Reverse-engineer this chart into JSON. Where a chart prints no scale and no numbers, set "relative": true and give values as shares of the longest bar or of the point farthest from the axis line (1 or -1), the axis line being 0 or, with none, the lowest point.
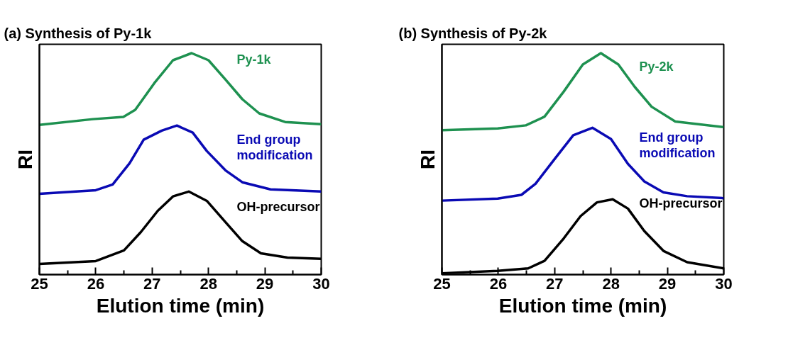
{
  "chart_data": [
    {
      "type": "line",
      "title": "(a) Synthesis of Py-1k",
      "xlabel": "Elution time (min)",
      "ylabel": "RI",
      "relative": true,
      "xlim": [
        25,
        30
      ],
      "xticks": [
        25,
        {
          "value": 25.5,
          "label": null
        },
        26,
        {
          "value": 26.5,
          "label": null
        },
        27,
        {
          "value": 27.5,
          "label": null
        },
        28,
        {
          "value": 28.5,
          "label": null
        },
        29,
        {
          "value": 29.5,
          "label": null
        },
        30
      ],
      "series": [
        {
          "name": "Py-1k",
          "color": "#1e9150",
          "x": [
            25,
            25.95,
            26.49,
            26.7,
            27.04,
            27.37,
            27.7,
            28.0,
            28.3,
            28.6,
            28.9,
            29.36,
            30
          ],
          "values": [
            0.676,
            0.702,
            0.712,
            0.744,
            0.865,
            0.968,
            1.0,
            0.968,
            0.881,
            0.792,
            0.728,
            0.689,
            0.679
          ]
        },
        {
          "name": "End group modification",
          "color": "#0a0ab4",
          "x": [
            25,
            26.0,
            26.3,
            26.6,
            26.85,
            27.17,
            27.44,
            27.72,
            27.97,
            28.3,
            28.6,
            29.1,
            30
          ],
          "values": [
            0.365,
            0.381,
            0.407,
            0.503,
            0.609,
            0.65,
            0.673,
            0.641,
            0.558,
            0.471,
            0.417,
            0.385,
            0.375
          ]
        },
        {
          "name": "OH-precursor",
          "color": "#000000",
          "x": [
            25,
            26.0,
            26.5,
            26.8,
            27.1,
            27.37,
            27.65,
            27.97,
            28.3,
            28.6,
            28.93,
            29.4,
            30
          ],
          "values": [
            0.048,
            0.061,
            0.109,
            0.192,
            0.288,
            0.353,
            0.375,
            0.333,
            0.237,
            0.151,
            0.096,
            0.077,
            0.071
          ]
        }
      ]
    },
    {
      "type": "line",
      "title": "(b) Synthesis of Py-2k",
      "xlabel": "Elution time (min)",
      "ylabel": "RI",
      "relative": true,
      "xlim": [
        25,
        30
      ],
      "xticks": [
        25,
        {
          "value": 25.5,
          "label": null
        },
        26,
        {
          "value": 26.5,
          "label": null
        },
        27,
        {
          "value": 27.5,
          "label": null
        },
        28,
        {
          "value": 28.5,
          "label": null
        },
        29,
        {
          "value": 29.5,
          "label": null
        },
        30
      ],
      "series": [
        {
          "name": "Py-2k",
          "color": "#1e9150",
          "x": [
            25,
            25.99,
            26.49,
            26.82,
            27.16,
            27.5,
            27.82,
            28.13,
            28.42,
            28.72,
            29.14,
            30
          ],
          "values": [
            0.652,
            0.66,
            0.674,
            0.713,
            0.826,
            0.949,
            1.0,
            0.949,
            0.848,
            0.758,
            0.691,
            0.666
          ]
        },
        {
          "name": "End group modification",
          "color": "#0a0ab4",
          "x": [
            25,
            25.99,
            26.41,
            26.66,
            27.0,
            27.33,
            27.67,
            28.0,
            28.3,
            28.59,
            28.93,
            29.35,
            30
          ],
          "values": [
            0.334,
            0.343,
            0.36,
            0.41,
            0.522,
            0.629,
            0.663,
            0.612,
            0.5,
            0.421,
            0.371,
            0.354,
            0.345
          ]
        },
        {
          "name": "OH-precursor",
          "color": "#000000",
          "x": [
            25,
            25.99,
            26.53,
            26.82,
            27.16,
            27.46,
            27.75,
            28.03,
            28.3,
            28.59,
            28.93,
            29.35,
            30
          ],
          "values": [
            0.006,
            0.017,
            0.028,
            0.062,
            0.163,
            0.264,
            0.326,
            0.34,
            0.298,
            0.197,
            0.107,
            0.056,
            0.028
          ]
        }
      ]
    }
  ]
}
